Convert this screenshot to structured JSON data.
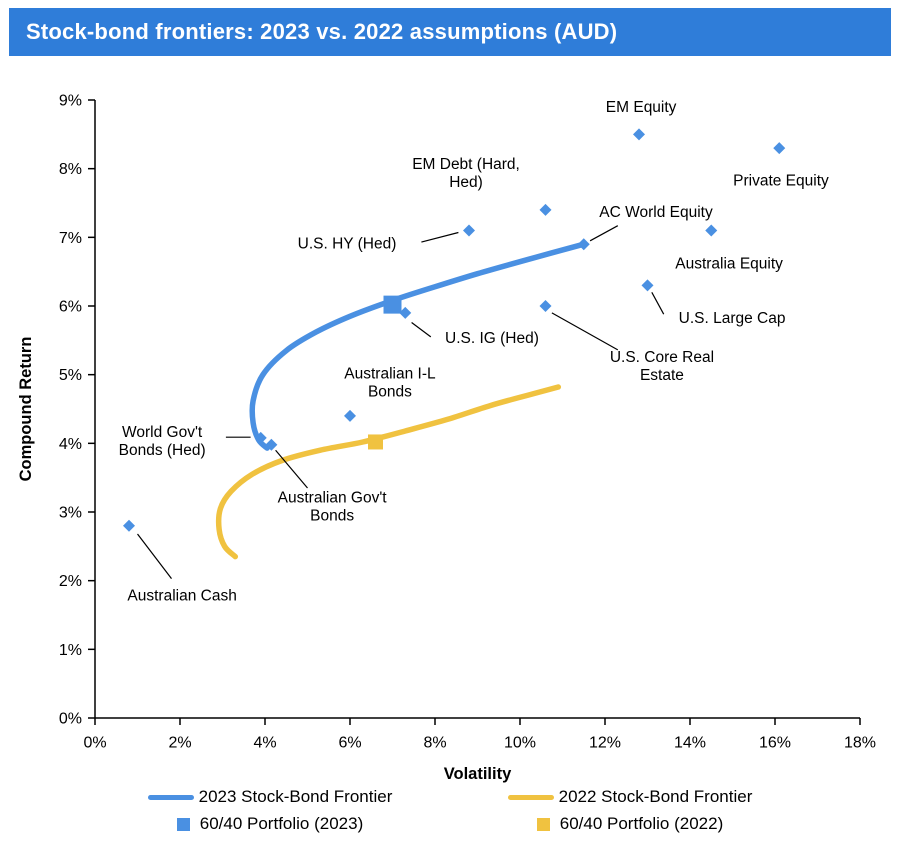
{
  "banner": {
    "title": "Stock-bond frontiers: 2023 vs. 2022 assumptions (AUD)"
  },
  "colors": {
    "banner_bg": "#2f7dd9",
    "banner_text": "#ffffff",
    "blue": "#4a90e2",
    "gold": "#f0c240",
    "axis": "#000000",
    "background": "#ffffff"
  },
  "chart_data": {
    "type": "scatter",
    "title": "Stock-bond frontiers: 2023 vs. 2022 assumptions (AUD)",
    "xlabel": "Volatility",
    "ylabel": "Compound Return",
    "xlim": [
      0,
      18
    ],
    "ylim": [
      0,
      9
    ],
    "x_ticks": [
      "0%",
      "2%",
      "4%",
      "6%",
      "8%",
      "10%",
      "12%",
      "14%",
      "16%",
      "18%"
    ],
    "y_ticks": [
      "0%",
      "1%",
      "2%",
      "3%",
      "4%",
      "5%",
      "6%",
      "7%",
      "8%",
      "9%"
    ],
    "grid": false,
    "legend_position": "bottom",
    "frontiers": [
      {
        "name": "2023 Stock-Bond Frontier",
        "color_key": "blue",
        "points": [
          [
            4.05,
            3.93
          ],
          [
            3.85,
            4.05
          ],
          [
            3.72,
            4.3
          ],
          [
            3.72,
            4.62
          ],
          [
            3.95,
            5.0
          ],
          [
            4.5,
            5.35
          ],
          [
            5.2,
            5.62
          ],
          [
            6.0,
            5.85
          ],
          [
            7.0,
            6.08
          ],
          [
            8.0,
            6.28
          ],
          [
            9.0,
            6.47
          ],
          [
            10.2,
            6.68
          ],
          [
            11.5,
            6.9
          ]
        ]
      },
      {
        "name": "2022 Stock-Bond Frontier",
        "color_key": "gold",
        "points": [
          [
            3.3,
            2.35
          ],
          [
            3.05,
            2.5
          ],
          [
            2.92,
            2.75
          ],
          [
            2.95,
            3.05
          ],
          [
            3.2,
            3.3
          ],
          [
            3.7,
            3.55
          ],
          [
            4.4,
            3.75
          ],
          [
            5.3,
            3.9
          ],
          [
            6.3,
            4.02
          ],
          [
            7.3,
            4.18
          ],
          [
            8.3,
            4.35
          ],
          [
            9.3,
            4.55
          ],
          [
            10.3,
            4.72
          ],
          [
            10.9,
            4.82
          ]
        ]
      }
    ],
    "assets": [
      {
        "label": "EM Equity",
        "x": 12.8,
        "y": 8.5,
        "label_x": 12.85,
        "label_y": 8.89
      },
      {
        "label": "Private Equity",
        "x": 16.1,
        "y": 8.3,
        "label_x": 16.14,
        "label_y": 7.82
      },
      {
        "label": "EM Debt (Hard,\nHed)",
        "x": 10.6,
        "y": 7.4,
        "label_x": 8.73,
        "label_y": 7.93
      },
      {
        "label": "U.S. HY (Hed)",
        "x": 8.8,
        "y": 7.1,
        "label_x": 5.93,
        "label_y": 6.9,
        "leader": [
          [
            7.68,
            6.93
          ],
          [
            8.55,
            7.07
          ]
        ]
      },
      {
        "label": "AC World Equity",
        "x": 11.5,
        "y": 6.9,
        "label_x": 13.2,
        "label_y": 7.36,
        "leader": [
          [
            12.3,
            7.17
          ],
          [
            11.65,
            6.95
          ]
        ]
      },
      {
        "label": "Australia Equity",
        "x": 14.5,
        "y": 7.1,
        "label_x": 14.92,
        "label_y": 6.61
      },
      {
        "label": "U.S. Large Cap",
        "x": 13.0,
        "y": 6.3,
        "label_x": 14.99,
        "label_y": 5.82,
        "leader": [
          [
            13.38,
            5.88
          ],
          [
            13.1,
            6.2
          ]
        ]
      },
      {
        "label": "U.S. Core Real\nEstate",
        "x": 10.6,
        "y": 6.0,
        "label_x": 13.34,
        "label_y": 5.12,
        "leader": [
          [
            12.3,
            5.36
          ],
          [
            10.75,
            5.9
          ]
        ]
      },
      {
        "label": "U.S. IG (Hed)",
        "x": 7.3,
        "y": 5.9,
        "label_x": 9.34,
        "label_y": 5.53,
        "leader": [
          [
            7.45,
            5.76
          ],
          [
            7.9,
            5.55
          ]
        ]
      },
      {
        "label": "Australian I-L\nBonds",
        "x": 6.0,
        "y": 4.4,
        "label_x": 6.94,
        "label_y": 4.88
      },
      {
        "label": "World Gov't\nBonds (Hed)",
        "x": 3.9,
        "y": 4.08,
        "label_x": 1.58,
        "label_y": 4.03,
        "leader": [
          [
            3.08,
            4.09
          ],
          [
            3.66,
            4.09
          ]
        ]
      },
      {
        "label": "Australian Gov't\nBonds",
        "x": 4.15,
        "y": 3.98,
        "label_x": 5.58,
        "label_y": 3.07,
        "leader": [
          [
            5.0,
            3.35
          ],
          [
            4.25,
            3.9
          ]
        ]
      },
      {
        "label": "Australian Cash",
        "x": 0.8,
        "y": 2.8,
        "label_x": 2.05,
        "label_y": 1.78,
        "leader": [
          [
            1.0,
            2.68
          ],
          [
            1.8,
            2.03
          ]
        ]
      }
    ],
    "portfolios": [
      {
        "label": "60/40 Portfolio (2023)",
        "x": 7.0,
        "y": 6.02,
        "color_key": "blue",
        "size": 18
      },
      {
        "label": "60/40 Portfolio (2022)",
        "x": 6.6,
        "y": 4.02,
        "color_key": "gold",
        "size": 15
      }
    ],
    "legend": [
      {
        "label": "2023 Stock-Bond Frontier",
        "swatch": "line",
        "color_key": "blue"
      },
      {
        "label": "2022 Stock-Bond Frontier",
        "swatch": "line",
        "color_key": "gold"
      },
      {
        "label": "60/40 Portfolio (2023)",
        "swatch": "square",
        "color_key": "blue"
      },
      {
        "label": "60/40 Portfolio (2022)",
        "swatch": "square",
        "color_key": "gold"
      }
    ]
  }
}
